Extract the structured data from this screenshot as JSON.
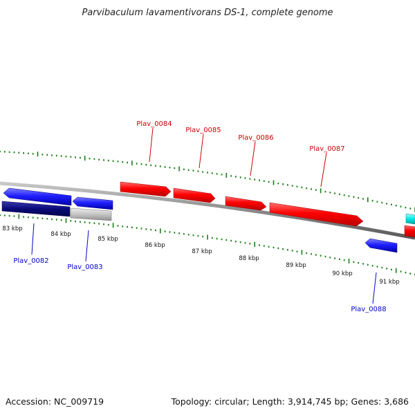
{
  "title": "Parvibaculum lavamentivorans DS-1, complete genome",
  "footer": {
    "accession": "Accession: NC_009719",
    "summary": "Topology: circular; Length: 3,914,745 bp; Genes: 3,686"
  },
  "colors": {
    "forward_strand": "#ff0000",
    "reverse_strand": "#1f1fff",
    "backbone": "#8a8a8a",
    "ticks": "#1a7a1a",
    "forward_label": "#cc0000",
    "reverse_label": "#0000cc",
    "dark_feature": "#0a0a78",
    "gray_feature": "#c4c4c4",
    "cyan_feature": "#00e8e8"
  },
  "scale_ticks": [
    "83 kbp",
    "84 kbp",
    "85 kbp",
    "86 kbp",
    "87 kbp",
    "88 kbp",
    "89 kbp",
    "90 kbp",
    "91 kbp"
  ],
  "genes_forward": [
    {
      "name": "Plav_0084",
      "strand": "+"
    },
    {
      "name": "Plav_0085",
      "strand": "+"
    },
    {
      "name": "Plav_0086",
      "strand": "+"
    },
    {
      "name": "Plav_0087",
      "strand": "+"
    }
  ],
  "genes_reverse": [
    {
      "name": "Plav_0082",
      "strand": "-"
    },
    {
      "name": "Plav_0083",
      "strand": "-"
    },
    {
      "name": "Plav_0088",
      "strand": "-"
    }
  ]
}
